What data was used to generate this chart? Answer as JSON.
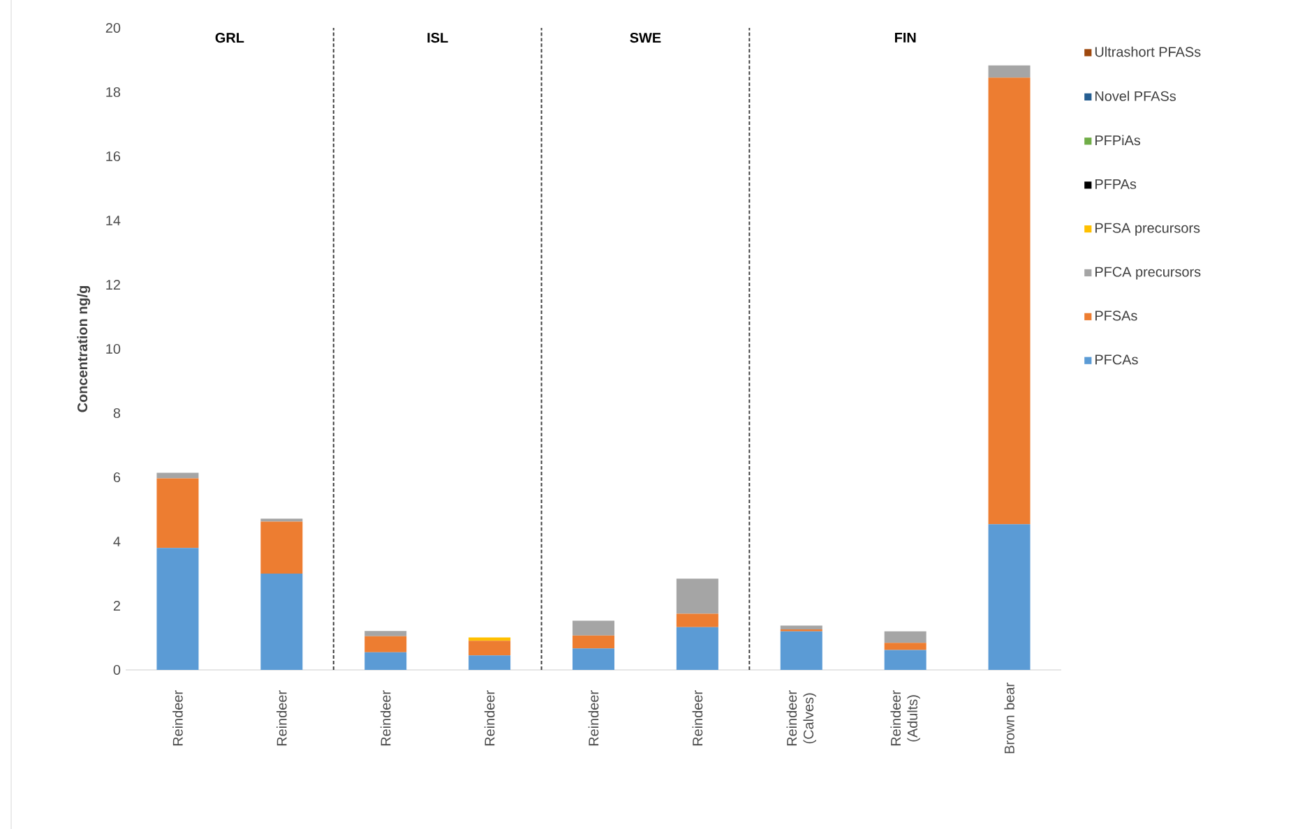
{
  "chart_data": {
    "type": "bar",
    "stacked": true,
    "ylabel": "Concentration ng/g",
    "ylim": [
      0,
      20
    ],
    "yticks": [
      0,
      2,
      4,
      6,
      8,
      10,
      12,
      14,
      16,
      18,
      20
    ],
    "grid": false,
    "legend": "right",
    "categories": [
      "Reindeer",
      "Reindeer",
      "Reindeer",
      "Reindeer",
      "Reindeer",
      "Reindeer",
      "Reindeer (Calves)",
      "Reindeer (Adults)",
      "Brown bear"
    ],
    "series": [
      {
        "name": "PFCAs",
        "color": "#5b9bd5",
        "values": [
          3.8,
          3.0,
          0.55,
          0.45,
          0.67,
          1.33,
          1.2,
          0.62,
          4.54
        ]
      },
      {
        "name": "PFSAs",
        "color": "#ed7d31",
        "values": [
          2.17,
          1.62,
          0.5,
          0.46,
          0.4,
          0.42,
          0.06,
          0.22,
          13.91
        ]
      },
      {
        "name": "PFCA precursors",
        "color": "#a5a5a5",
        "values": [
          0.17,
          0.09,
          0.16,
          0,
          0.46,
          1.09,
          0.12,
          0.36,
          0.38
        ]
      },
      {
        "name": "PFSA precursors",
        "color": "#ffc000",
        "values": [
          0,
          0,
          0,
          0.1,
          0,
          0,
          0,
          0,
          0
        ]
      },
      {
        "name": "PFPAs",
        "color": "#000000",
        "values": [
          0,
          0,
          0,
          0,
          0,
          0,
          0,
          0,
          0
        ]
      },
      {
        "name": "PFPiAs",
        "color": "#70ad47",
        "values": [
          0,
          0,
          0,
          0,
          0,
          0,
          0,
          0,
          0
        ]
      },
      {
        "name": "Novel PFASs",
        "color": "#255e91",
        "values": [
          0,
          0,
          0,
          0,
          0,
          0,
          0,
          0,
          0
        ]
      },
      {
        "name": "Ultrashort PFASs",
        "color": "#9e480e",
        "values": [
          0,
          0,
          0,
          0,
          0,
          0,
          0,
          0,
          0
        ]
      }
    ],
    "annotations": [
      "GRL",
      "ISL",
      "SWE",
      "FIN"
    ]
  }
}
